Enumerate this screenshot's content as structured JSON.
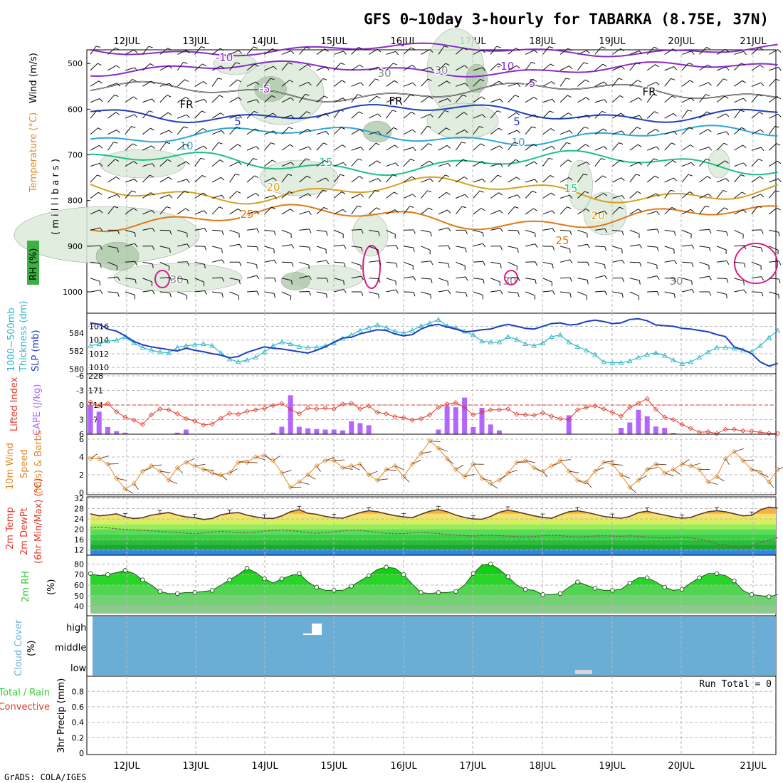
{
  "title": "GFS 0~10day 3-hourly for TABARKA (8.75E, 37N)",
  "footer": "GrADS: COLA/IGES",
  "dates": [
    "12JUL",
    "13JUL",
    "14JUL",
    "15JUL",
    "16JUL",
    "17JUL",
    "18JUL",
    "19JUL",
    "20JUL",
    "21JUL"
  ],
  "colors": {
    "rh_green": "#3cb043",
    "temp_label": "#e08a2c",
    "wind_label": "#000000",
    "slp": "#1f3fbf",
    "thickness": "#2fb8c8",
    "cape": "#b266ff",
    "lifted_index": "#e03a2c",
    "wind10m": "#e08a2c",
    "temp2m_fill": "#f0921e",
    "rh2m_fill": "#2ecc2e",
    "cloud": "#6aaed6",
    "precip_total": "#2ecc2e",
    "precip_conv": "#e03a2c"
  },
  "panels": {
    "upper": {
      "ylabel_rh": "RH (%)",
      "ylabel_temp": "Temperature (°C)",
      "ylabel_wind": "Wind (m/s)",
      "ylabel_units": "( m i l l i b a r s )",
      "y_ticks": [
        "500",
        "600",
        "700",
        "800",
        "900",
        "1000"
      ],
      "fr_label": "FR",
      "contour_labels": [
        "-10",
        "-5",
        "5",
        "10",
        "15",
        "20",
        "25",
        "30"
      ]
    },
    "slp": {
      "ylabel_left1": "1000~500mb",
      "ylabel_left2": "Thickness (dm)",
      "ylabel_right": "SLP (mb)",
      "left_ticks": [
        "584",
        "582",
        "580"
      ],
      "right_ticks": [
        "1016",
        "1014",
        "1012",
        "1010"
      ]
    },
    "cape": {
      "ylabel_li": "Lifted Index",
      "ylabel_cape": "CAPE (J/kg)",
      "li_ticks": [
        "-6",
        "-3",
        "0",
        "3",
        "6"
      ],
      "cape_ticks": [
        "228",
        "171",
        "114",
        "57"
      ]
    },
    "wind10": {
      "ylabel_1": "10m Wind",
      "ylabel_2": "Speed",
      "ylabel_3": "(m/s) & Barbs",
      "ticks": [
        "6",
        "4",
        "2",
        "0"
      ]
    },
    "temp2": {
      "ylabel_1": "2m Temp",
      "ylabel_2": "2m DewPt",
      "ylabel_3": "(6hr Min/Max) (°C)",
      "ticks": [
        "32",
        "28",
        "24",
        "20",
        "16",
        "12"
      ]
    },
    "rh2": {
      "ylabel_1": "2m RH",
      "ylabel_2": "(%)",
      "ticks": [
        "80",
        "70",
        "60",
        "50",
        "40"
      ]
    },
    "cloud": {
      "ylabel_1": "Cloud Cover",
      "ylabel_2": "(%)",
      "levels": [
        "high",
        "middle",
        "low"
      ]
    },
    "precip": {
      "ylabel_1": "Total / Rain",
      "ylabel_2": "Convective",
      "ylabel_3": "3hr Precip (mm)",
      "ticks": [
        "0.8",
        "0.6",
        "0.4",
        "0.2",
        "0"
      ],
      "run_total": "Run Total = 0"
    }
  },
  "chart_data": [
    {
      "type": "line",
      "title": "Sea level pressure and 1000~500mb thickness",
      "x_unit": "3-hourly steps from 11JUL 12Z (index 0..79)",
      "series": [
        {
          "name": "SLP (mb)",
          "values": [
            1016.5,
            1016.3,
            1015.6,
            1015.3,
            1014.6,
            1013.8,
            1013.3,
            1013.0,
            1012.8,
            1012.6,
            1012.4,
            1012.8,
            1012.5,
            1012.3,
            1012.0,
            1011.8,
            1011.4,
            1011.6,
            1012.2,
            1012.6,
            1013.0,
            1012.8,
            1012.7,
            1012.5,
            1012.3,
            1012.1,
            1012.5,
            1013.0,
            1013.7,
            1014.3,
            1014.4,
            1014.9,
            1015.2,
            1015.5,
            1015.4,
            1014.9,
            1014.6,
            1014.8,
            1015.6,
            1016.1,
            1016.3,
            1015.9,
            1015.6,
            1015.2,
            1015.3,
            1015.5,
            1015.6,
            1016.0,
            1016.3,
            1016.0,
            1015.7,
            1015.6,
            1016.0,
            1016.4,
            1016.5,
            1016.2,
            1016.3,
            1016.7,
            1016.9,
            1016.7,
            1016.4,
            1016.5,
            1017.0,
            1017.1,
            1016.8,
            1016.2,
            1016.1,
            1016.0,
            1015.7,
            1015.6,
            1015.4,
            1015.2,
            1014.8,
            1014.5,
            1013.0,
            1012.6,
            1012.0,
            1010.8,
            1010.2,
            1010.6
          ]
        },
        {
          "name": "Thickness (dm)",
          "values": [
            582.6,
            582.8,
            583.1,
            583.2,
            583.6,
            582.9,
            582.4,
            582.1,
            581.9,
            581.8,
            582.4,
            582.6,
            582.7,
            582.8,
            582.6,
            581.8,
            581.1,
            580.8,
            581.0,
            581.3,
            581.9,
            582.6,
            583.0,
            582.8,
            582.5,
            582.4,
            582.4,
            582.6,
            582.9,
            583.4,
            583.8,
            584.3,
            584.6,
            584.9,
            584.6,
            584.2,
            584.0,
            584.3,
            584.8,
            585.1,
            585.5,
            584.8,
            584.6,
            584.2,
            583.8,
            583.1,
            583.0,
            583.0,
            583.6,
            583.3,
            582.8,
            582.6,
            582.9,
            583.6,
            583.8,
            583.0,
            582.5,
            582.1,
            581.6,
            580.8,
            580.7,
            580.7,
            580.9,
            581.3,
            581.6,
            581.8,
            581.5,
            581.0,
            580.6,
            580.8,
            581.3,
            581.9,
            582.4,
            582.4,
            582.3,
            582.1,
            581.9,
            582.6,
            583.5,
            584.3
          ]
        }
      ],
      "ylim_slp": [
        1009.5,
        1017.5
      ],
      "ylim_thickness": [
        579.8,
        585.9
      ]
    },
    {
      "type": "bar",
      "title": "CAPE (J/kg) bars with Lifted Index line",
      "series": [
        {
          "name": "CAPE (J/kg)",
          "values": [
            114,
            88,
            28,
            12,
            6,
            0,
            0,
            0,
            0,
            0,
            6,
            18,
            0,
            0,
            0,
            0,
            0,
            0,
            0,
            0,
            0,
            6,
            29,
            152,
            29,
            23,
            20,
            18,
            18,
            15,
            50,
            43,
            35,
            0,
            0,
            0,
            0,
            0,
            0,
            0,
            18,
            110,
            105,
            143,
            28,
            103,
            38,
            15,
            0,
            0,
            0,
            0,
            0,
            0,
            0,
            74,
            0,
            0,
            0,
            0,
            0,
            25,
            46,
            95,
            70,
            30,
            25,
            5,
            0,
            0,
            0,
            0,
            0,
            0,
            0,
            0,
            0,
            0,
            0,
            0
          ]
        },
        {
          "name": "Lifted Index",
          "values": [
            -0.6,
            0.2,
            -0.3,
            1.4,
            2.5,
            3.1,
            4.0,
            2.0,
            0.8,
            1.0,
            1.8,
            2.8,
            3.3,
            4.1,
            3.9,
            2.7,
            1.7,
            1.9,
            1.3,
            1.0,
            0.7,
            0.1,
            -0.3,
            0.9,
            1.8,
            0.6,
            0.8,
            0.6,
            0.8,
            -0.2,
            -0.4,
            0.8,
            0.2,
            1.5,
            1.8,
            2.4,
            2.6,
            3.1,
            2.8,
            2.0,
            0.5,
            -0.2,
            -0.5,
            0.5,
            2.0,
            1.5,
            1.0,
            1.0,
            0.8,
            1.9,
            2.0,
            2.1,
            1.6,
            2.3,
            2.8,
            3.0,
            1.0,
            0.5,
            0.2,
            0.8,
            1.5,
            2.3,
            0.5,
            -0.4,
            -1.3,
            0.9,
            2.5,
            3.0,
            4.0,
            4.8,
            5.6,
            5.5,
            6.0,
            5.0,
            5.0,
            5.3,
            5.4,
            5.6,
            5.8,
            6.0
          ]
        }
      ],
      "ylim_cape": [
        0,
        228
      ],
      "ylim_li": [
        6,
        -6
      ]
    },
    {
      "type": "line",
      "title": "10m wind speed (m/s)",
      "series": [
        {
          "name": "10m Wind Speed (m/s)",
          "values": [
            3.8,
            3.8,
            3.2,
            1.6,
            0.4,
            1.0,
            2.4,
            3.0,
            2.4,
            1.4,
            2.8,
            3.4,
            3.0,
            2.6,
            2.2,
            2.0,
            2.2,
            3.4,
            3.4,
            4.0,
            4.2,
            3.6,
            2.2,
            0.6,
            1.2,
            2.0,
            3.0,
            3.6,
            3.6,
            2.8,
            3.0,
            3.2,
            2.0,
            1.4,
            2.6,
            3.0,
            1.8,
            3.2,
            4.4,
            5.8,
            5.0,
            3.8,
            2.6,
            1.8,
            3.2,
            1.6,
            1.0,
            1.4,
            2.2,
            3.4,
            3.6,
            2.8,
            2.4,
            3.0,
            3.6,
            2.4,
            1.4,
            1.2,
            2.4,
            3.4,
            3.2,
            2.0,
            0.6,
            1.4,
            2.6,
            3.2,
            2.2,
            2.6,
            3.2,
            3.0,
            2.6,
            1.2,
            1.8,
            3.8,
            4.6,
            3.6,
            2.6,
            2.2,
            1.2,
            2.6
          ]
        }
      ],
      "ylim": [
        0,
        6
      ]
    },
    {
      "type": "area",
      "title": "2m Temp / 2m DewPt (°C)",
      "series": [
        {
          "name": "2m Temp (°C)",
          "values": [
            26.0,
            25.2,
            25.5,
            26.0,
            24.8,
            24.2,
            24.5,
            25.5,
            26.0,
            26.5,
            25.5,
            24.8,
            24.5,
            23.8,
            24.2,
            25.6,
            26.2,
            26.5,
            25.5,
            24.8,
            24.3,
            24.2,
            25.2,
            26.8,
            27.6,
            26.2,
            25.8,
            25.0,
            24.5,
            24.3,
            25.4,
            26.5,
            27.2,
            26.8,
            26.0,
            25.3,
            24.8,
            24.5,
            25.8,
            27.0,
            27.6,
            26.8,
            25.5,
            24.6,
            24.0,
            23.9,
            25.0,
            26.6,
            27.4,
            26.8,
            26.0,
            25.2,
            24.6,
            24.3,
            25.6,
            26.8,
            27.2,
            26.6,
            25.8,
            25.0,
            24.6,
            24.3,
            25.0,
            26.5,
            27.0,
            26.2,
            25.5,
            24.8,
            24.3,
            24.6,
            25.8,
            26.8,
            27.2,
            26.8,
            26.0,
            25.2,
            25.4,
            27.5,
            28.6,
            28.2
          ]
        },
        {
          "name": "2m DewPt (°C)",
          "values": [
            20.5,
            20.8,
            20.6,
            20.2,
            20.0,
            19.8,
            19.6,
            19.4,
            19.2,
            19.0,
            18.8,
            18.5,
            18.3,
            18.6,
            18.9,
            19.2,
            19.0,
            18.7,
            18.6,
            18.9,
            19.3,
            19.6,
            19.8,
            19.5,
            19.2,
            18.7,
            18.5,
            18.7,
            19.0,
            19.4,
            19.7,
            19.6,
            19.2,
            18.8,
            18.5,
            18.3,
            18.4,
            18.6,
            18.8,
            18.6,
            18.4,
            18.0,
            17.8,
            17.6,
            17.4,
            17.6,
            17.7,
            17.6,
            17.4,
            17.2,
            17.0,
            17.3,
            17.5,
            17.7,
            17.6,
            17.2,
            17.0,
            17.2,
            17.4,
            17.5,
            17.4,
            17.3,
            17.5,
            17.3,
            17.0,
            16.8,
            16.6,
            16.8,
            17.0,
            16.7,
            16.2,
            15.5,
            14.3,
            14.0,
            13.2,
            12.6,
            13.6,
            14.8,
            15.8,
            16.8
          ]
        }
      ],
      "ylim": [
        10,
        32
      ]
    },
    {
      "type": "area",
      "title": "2m RH (%)",
      "series": [
        {
          "name": "2m RH (%)",
          "values": [
            71,
            69,
            70,
            72,
            74,
            71,
            65,
            60,
            54,
            52,
            52,
            53,
            53,
            54,
            55,
            60,
            65,
            70,
            76,
            72,
            66,
            62,
            66,
            69,
            71,
            63,
            58,
            55,
            55,
            55,
            59,
            64,
            69,
            75,
            77,
            76,
            70,
            61,
            53,
            52,
            53,
            53,
            54,
            60,
            71,
            79,
            80,
            75,
            68,
            60,
            56,
            55,
            51,
            51,
            52,
            58,
            63,
            60,
            57,
            55,
            55,
            56,
            62,
            67,
            67,
            63,
            58,
            55,
            56,
            62,
            67,
            71,
            71,
            69,
            64,
            55,
            51,
            50,
            49,
            51
          ]
        }
      ],
      "ylim": [
        30,
        85
      ]
    },
    {
      "type": "bar",
      "title": "Cloud Cover (%)",
      "levels": [
        "high",
        "middle",
        "low"
      ],
      "series": [
        {
          "name": "high",
          "steps": [
            32,
            33
          ],
          "values": [
            10,
            60
          ]
        },
        {
          "name": "low",
          "steps": [
            69,
            70
          ],
          "values": [
            20,
            20
          ]
        }
      ]
    },
    {
      "type": "bar",
      "title": "3hr Precip (mm)",
      "series": [
        {
          "name": "Total / Rain",
          "values": []
        },
        {
          "name": "Convective",
          "values": []
        }
      ],
      "ylim": [
        0,
        0.95
      ]
    }
  ]
}
